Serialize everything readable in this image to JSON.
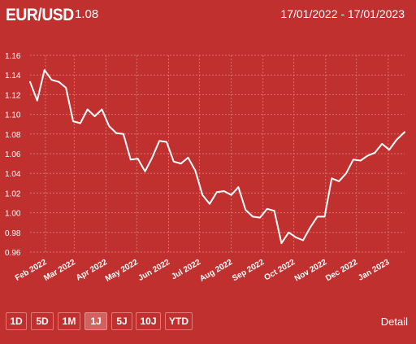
{
  "header": {
    "pair": "EUR/USD",
    "price": "1.08",
    "date_range": "17/01/2022 - 17/01/2023"
  },
  "controls": {
    "buttons": [
      "1D",
      "5D",
      "1M",
      "1J",
      "5J",
      "10J",
      "YTD"
    ],
    "active": "1J",
    "detail": "Detail"
  },
  "colors": {
    "background": "#c0302e",
    "line": "#ffffff",
    "grid": "#d9706d"
  },
  "chart_data": {
    "type": "line",
    "grid": true,
    "ylim": [
      0.96,
      1.16
    ],
    "yticks": [
      "1.16",
      "1.14",
      "1.12",
      "1.10",
      "1.08",
      "1.06",
      "1.04",
      "1.02",
      "1.00",
      "0.98",
      "0.96"
    ],
    "xticks": [
      {
        "date": "2022-02-01",
        "label": "Feb 2022"
      },
      {
        "date": "2022-03-01",
        "label": "Mar 2022"
      },
      {
        "date": "2022-04-01",
        "label": "Apr 2022"
      },
      {
        "date": "2022-05-01",
        "label": "May 2022"
      },
      {
        "date": "2022-06-01",
        "label": "Jun 2022"
      },
      {
        "date": "2022-07-01",
        "label": "Jul 2022"
      },
      {
        "date": "2022-08-01",
        "label": "Aug 2022"
      },
      {
        "date": "2022-09-01",
        "label": "Sep 2022"
      },
      {
        "date": "2022-10-01",
        "label": "Oct 2022"
      },
      {
        "date": "2022-11-01",
        "label": "Nov 2022"
      },
      {
        "date": "2022-12-01",
        "label": "Dec 2022"
      },
      {
        "date": "2023-01-01",
        "label": "Jan 2023"
      }
    ],
    "series": [
      {
        "x": [
          "2022-01-17",
          "2022-01-24",
          "2022-01-31",
          "2022-02-07",
          "2022-02-14",
          "2022-02-21",
          "2022-02-28",
          "2022-03-07",
          "2022-03-14",
          "2022-03-21",
          "2022-03-28",
          "2022-04-04",
          "2022-04-11",
          "2022-04-18",
          "2022-04-25",
          "2022-05-02",
          "2022-05-09",
          "2022-05-16",
          "2022-05-23",
          "2022-05-30",
          "2022-06-06",
          "2022-06-13",
          "2022-06-20",
          "2022-06-27",
          "2022-07-04",
          "2022-07-11",
          "2022-07-18",
          "2022-07-25",
          "2022-08-01",
          "2022-08-08",
          "2022-08-15",
          "2022-08-22",
          "2022-08-29",
          "2022-09-05",
          "2022-09-12",
          "2022-09-19",
          "2022-09-26",
          "2022-10-03",
          "2022-10-10",
          "2022-10-17",
          "2022-10-24",
          "2022-10-31",
          "2022-11-07",
          "2022-11-14",
          "2022-11-21",
          "2022-11-28",
          "2022-12-05",
          "2022-12-12",
          "2022-12-19",
          "2022-12-26",
          "2023-01-02",
          "2023-01-09",
          "2023-01-17"
        ],
        "values": [
          1.133,
          1.114,
          1.145,
          1.135,
          1.133,
          1.127,
          1.093,
          1.091,
          1.105,
          1.098,
          1.105,
          1.088,
          1.081,
          1.08,
          1.054,
          1.055,
          1.042,
          1.056,
          1.073,
          1.072,
          1.052,
          1.05,
          1.056,
          1.043,
          1.018,
          1.009,
          1.021,
          1.022,
          1.018,
          1.026,
          1.003,
          0.996,
          0.995,
          1.004,
          1.002,
          0.969,
          0.98,
          0.975,
          0.972,
          0.985,
          0.996,
          0.996,
          1.035,
          1.032,
          1.04,
          1.054,
          1.053,
          1.058,
          1.061,
          1.07,
          1.064,
          1.074,
          1.082
        ]
      }
    ]
  }
}
